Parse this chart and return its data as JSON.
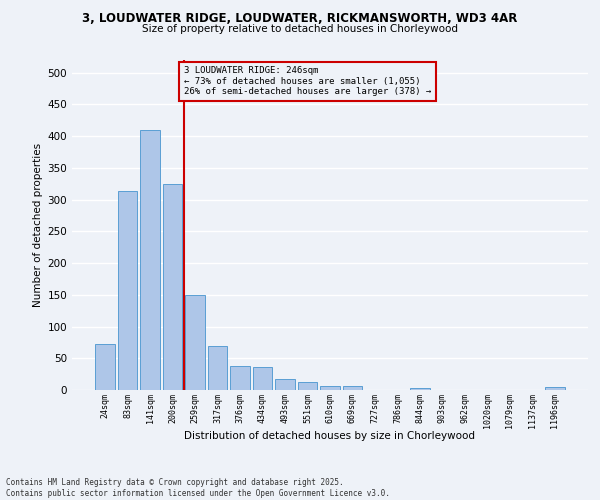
{
  "title1": "3, LOUDWATER RIDGE, LOUDWATER, RICKMANSWORTH, WD3 4AR",
  "title2": "Size of property relative to detached houses in Chorleywood",
  "xlabel": "Distribution of detached houses by size in Chorleywood",
  "ylabel": "Number of detached properties",
  "bar_labels": [
    "24sqm",
    "83sqm",
    "141sqm",
    "200sqm",
    "259sqm",
    "317sqm",
    "376sqm",
    "434sqm",
    "493sqm",
    "551sqm",
    "610sqm",
    "669sqm",
    "727sqm",
    "786sqm",
    "844sqm",
    "903sqm",
    "962sqm",
    "1020sqm",
    "1079sqm",
    "1137sqm",
    "1196sqm"
  ],
  "bar_values": [
    72,
    314,
    410,
    325,
    150,
    70,
    38,
    37,
    17,
    12,
    6,
    6,
    0,
    0,
    3,
    0,
    0,
    0,
    0,
    0,
    5
  ],
  "bar_color": "#aec6e8",
  "bar_edge_color": "#5a9fd4",
  "bg_color": "#eef2f8",
  "grid_color": "#ffffff",
  "vline_x": 3.5,
  "vline_color": "#cc0000",
  "annotation_text": "3 LOUDWATER RIDGE: 246sqm\n← 73% of detached houses are smaller (1,055)\n26% of semi-detached houses are larger (378) →",
  "annotation_box_color": "#cc0000",
  "footer": "Contains HM Land Registry data © Crown copyright and database right 2025.\nContains public sector information licensed under the Open Government Licence v3.0.",
  "ylim": [
    0,
    520
  ],
  "yticks": [
    0,
    50,
    100,
    150,
    200,
    250,
    300,
    350,
    400,
    450,
    500
  ]
}
